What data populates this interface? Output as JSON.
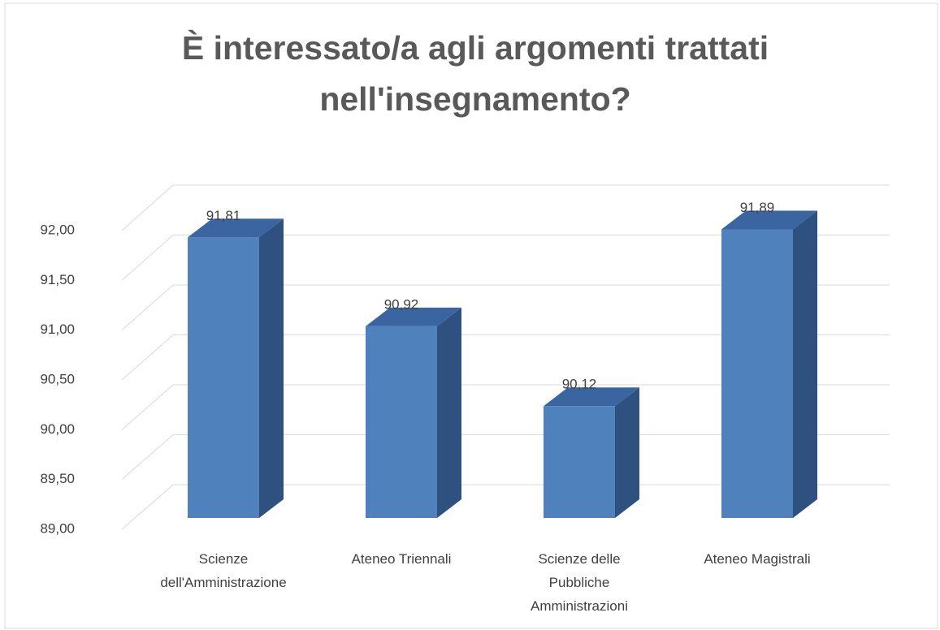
{
  "chart_data": {
    "type": "bar3d",
    "title": "È interessato/a agli argomenti trattati nell'insegnamento?",
    "categories": [
      "Scienze dell'Amministrazione",
      "Ateneo Triennali",
      "Scienze delle Pubbliche Amministrazioni",
      "Ateneo Magistrali"
    ],
    "values": [
      91.81,
      90.92,
      90.12,
      91.89
    ],
    "value_labels": [
      "91,81",
      "90,92",
      "90,12",
      "91,89"
    ],
    "color": "#4f81bd",
    "ylim": [
      89,
      92
    ],
    "yticks": [
      {
        "value": 89,
        "label": "89,00"
      },
      {
        "value": 89.5,
        "label": "89,50"
      },
      {
        "value": 90,
        "label": "90,00"
      },
      {
        "value": 90.5,
        "label": "90,50"
      },
      {
        "value": 91,
        "label": "91,00"
      },
      {
        "value": 91.5,
        "label": "91,50"
      },
      {
        "value": 92,
        "label": "92,00"
      }
    ],
    "grid": true
  }
}
